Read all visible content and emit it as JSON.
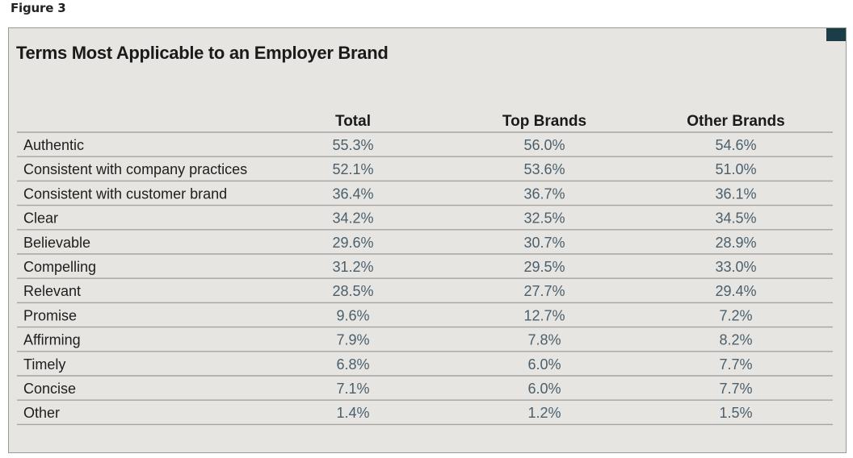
{
  "figure_label": "Figure 3",
  "colors": {
    "panel_background": "#e6e5e1",
    "rule_line": "#a5a4a0",
    "value_text": "#4a5f6d",
    "corner_accent": "#1b3d47"
  },
  "chart_data": {
    "type": "table",
    "title": "Terms Most Applicable to an Employer Brand",
    "columns": [
      "Total",
      "Top Brands",
      "Other Brands"
    ],
    "rows": [
      {
        "label": "Authentic",
        "values": [
          "55.3%",
          "56.0%",
          "54.6%"
        ]
      },
      {
        "label": "Consistent with company practices",
        "values": [
          "52.1%",
          "53.6%",
          "51.0%"
        ]
      },
      {
        "label": "Consistent with customer brand",
        "values": [
          "36.4%",
          "36.7%",
          "36.1%"
        ]
      },
      {
        "label": "Clear",
        "values": [
          "34.2%",
          "32.5%",
          "34.5%"
        ]
      },
      {
        "label": "Believable",
        "values": [
          "29.6%",
          "30.7%",
          "28.9%"
        ]
      },
      {
        "label": "Compelling",
        "values": [
          "31.2%",
          "29.5%",
          "33.0%"
        ]
      },
      {
        "label": "Relevant",
        "values": [
          "28.5%",
          "27.7%",
          "29.4%"
        ]
      },
      {
        "label": "Promise",
        "values": [
          "9.6%",
          "12.7%",
          "7.2%"
        ]
      },
      {
        "label": "Affirming",
        "values": [
          "7.9%",
          "7.8%",
          "8.2%"
        ]
      },
      {
        "label": "Timely",
        "values": [
          "6.8%",
          "6.0%",
          "7.7%"
        ]
      },
      {
        "label": "Concise",
        "values": [
          "7.1%",
          "6.0%",
          "7.7%"
        ]
      },
      {
        "label": "Other",
        "values": [
          "1.4%",
          "1.2%",
          "1.5%"
        ]
      }
    ]
  }
}
